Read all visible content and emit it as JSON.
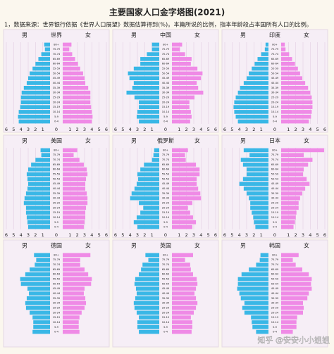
{
  "title": "主要国家人口金字塔图(2021)",
  "note": "1，数据来源：世界银行依据《世界人口展望》数据估算得到(%)。本篇所说的比例，指本年龄段占本国所有人口的比例。",
  "watermark": "知乎 @安安小小姐姐",
  "chart_data": [
    {
      "type": "pyramid",
      "title": "世界",
      "categories": [
        "0-4",
        "5-9",
        "10-14",
        "15-19",
        "20-24",
        "25-29",
        "30-34",
        "35-39",
        "40-44",
        "45-49",
        "50-54",
        "55-59",
        "60-64",
        "65-69",
        "70-74",
        "75-79",
        "80+"
      ],
      "series": [
        {
          "name": "男",
          "color": "#39b7e6",
          "values": [
            4.3,
            4.4,
            4.3,
            4.1,
            4.0,
            4.0,
            3.9,
            3.6,
            3.2,
            3.0,
            2.8,
            2.4,
            2.0,
            1.6,
            1.2,
            0.7,
            0.8
          ]
        },
        {
          "name": "女",
          "color": "#ef8ae6",
          "values": [
            4.0,
            4.1,
            4.0,
            3.9,
            3.8,
            3.8,
            3.8,
            3.5,
            3.1,
            3.0,
            2.8,
            2.4,
            2.1,
            1.7,
            1.3,
            0.9,
            1.2
          ]
        }
      ],
      "xlim": [
        -6,
        6
      ],
      "xticks": [
        {
          "value": -6,
          "label": "6"
        },
        {
          "value": -5,
          "label": "5"
        },
        {
          "value": -4,
          "label": "4"
        },
        {
          "value": -3,
          "label": "3"
        },
        {
          "value": -2,
          "label": "2"
        },
        {
          "value": -1,
          "label": "1"
        },
        0,
        1,
        2,
        3,
        4,
        5,
        6
      ],
      "grid": true
    },
    {
      "type": "pyramid",
      "title": "中国",
      "categories": [
        "0-4",
        "5-9",
        "10-14",
        "15-19",
        "20-24",
        "25-29",
        "30-34",
        "35-39",
        "40-44",
        "45-49",
        "50-54",
        "55-59",
        "60-64",
        "65-69",
        "70-74",
        "75-79",
        "80+"
      ],
      "series": [
        {
          "name": "男",
          "color": "#39b7e6",
          "values": [
            2.8,
            3.1,
            3.0,
            2.8,
            2.8,
            3.4,
            4.5,
            3.7,
            3.5,
            4.1,
            4.3,
            3.5,
            2.6,
            2.6,
            1.7,
            1.0,
            1.0
          ]
        },
        {
          "name": "女",
          "color": "#ef8ae6",
          "values": [
            2.5,
            2.7,
            2.6,
            2.4,
            2.4,
            3.1,
            4.3,
            3.6,
            3.4,
            4.0,
            4.2,
            3.5,
            2.6,
            2.7,
            1.8,
            1.1,
            1.4
          ]
        }
      ],
      "xlim": [
        -6,
        6
      ],
      "xticks": [
        {
          "value": -6,
          "label": "6"
        },
        {
          "value": -5,
          "label": "5"
        },
        {
          "value": -4,
          "label": "4"
        },
        {
          "value": -3,
          "label": "3"
        },
        {
          "value": -2,
          "label": "2"
        },
        {
          "value": -1,
          "label": "1"
        },
        0,
        1,
        2,
        3,
        4,
        5,
        6
      ],
      "grid": true
    },
    {
      "type": "pyramid",
      "title": "印度",
      "categories": [
        "0-4",
        "5-9",
        "10-14",
        "15-19",
        "20-24",
        "25-29",
        "30-34",
        "35-39",
        "40-44",
        "45-49",
        "50-54",
        "55-59",
        "60-64",
        "65-69",
        "70-74",
        "75-79",
        "80+"
      ],
      "series": [
        {
          "name": "男",
          "color": "#39b7e6",
          "values": [
            4.2,
            4.5,
            4.7,
            4.8,
            4.7,
            4.5,
            4.2,
            3.9,
            3.4,
            3.0,
            2.7,
            2.3,
            1.9,
            1.5,
            1.0,
            0.5,
            0.4
          ]
        },
        {
          "name": "女",
          "color": "#ef8ae6",
          "values": [
            3.8,
            4.1,
            4.2,
            4.3,
            4.3,
            4.2,
            4.0,
            3.7,
            3.3,
            2.9,
            2.6,
            2.3,
            1.9,
            1.5,
            1.1,
            0.6,
            0.5
          ]
        }
      ],
      "xlim": [
        -6,
        6
      ],
      "xticks": [
        {
          "value": -6,
          "label": "6"
        },
        {
          "value": -5,
          "label": "5"
        },
        {
          "value": -4,
          "label": "4"
        },
        {
          "value": -3,
          "label": "3"
        },
        {
          "value": -2,
          "label": "2"
        },
        {
          "value": -1,
          "label": "1"
        },
        0,
        1,
        2,
        3,
        4,
        5,
        6
      ],
      "grid": true
    },
    {
      "type": "pyramid",
      "title": "美国",
      "categories": [
        "0-4",
        "5-9",
        "10-14",
        "15-19",
        "20-24",
        "25-29",
        "30-34",
        "35-39",
        "40-44",
        "45-49",
        "50-54",
        "55-59",
        "60-64",
        "65-69",
        "70-74",
        "75-79",
        "80+"
      ],
      "series": [
        {
          "name": "男",
          "color": "#39b7e6",
          "values": [
            3.0,
            3.1,
            3.2,
            3.3,
            3.3,
            3.6,
            3.5,
            3.3,
            3.1,
            3.0,
            3.1,
            3.2,
            3.0,
            2.6,
            2.0,
            1.2,
            1.3
          ]
        },
        {
          "name": "女",
          "color": "#ef8ae6",
          "values": [
            2.9,
            3.0,
            3.1,
            3.1,
            3.2,
            3.4,
            3.4,
            3.3,
            3.1,
            3.1,
            3.2,
            3.4,
            3.3,
            2.9,
            2.3,
            1.5,
            2.0
          ]
        }
      ],
      "xlim": [
        -6,
        6
      ],
      "xticks": [
        {
          "value": -6,
          "label": "6"
        },
        {
          "value": -5,
          "label": "5"
        },
        {
          "value": -4,
          "label": "4"
        },
        {
          "value": -3,
          "label": "3"
        },
        {
          "value": -2,
          "label": "2"
        },
        {
          "value": -1,
          "label": "1"
        },
        0,
        1,
        2,
        3,
        4,
        5,
        6
      ],
      "grid": true
    },
    {
      "type": "pyramid",
      "title": "俄罗斯",
      "categories": [
        "0-4",
        "5-9",
        "10-14",
        "15-19",
        "20-24",
        "25-29",
        "30-34",
        "35-39",
        "40-44",
        "45-49",
        "50-54",
        "55-59",
        "60-64",
        "65-69",
        "70-74",
        "75-79",
        "80+"
      ],
      "series": [
        {
          "name": "男",
          "color": "#39b7e6",
          "values": [
            3.0,
            3.5,
            3.1,
            2.6,
            2.2,
            2.8,
            4.0,
            3.8,
            3.4,
            3.1,
            2.9,
            3.0,
            2.6,
            2.1,
            1.0,
            0.8,
            0.7
          ]
        },
        {
          "name": "女",
          "color": "#ef8ae6",
          "values": [
            2.8,
            3.3,
            2.9,
            2.5,
            2.2,
            2.8,
            4.0,
            3.9,
            3.6,
            3.4,
            3.4,
            3.8,
            3.8,
            3.3,
            1.9,
            1.8,
            2.2
          ]
        }
      ],
      "xlim": [
        -6,
        6
      ],
      "xticks": [
        {
          "value": -6,
          "label": "6"
        },
        {
          "value": -5,
          "label": "5"
        },
        {
          "value": -4,
          "label": "4"
        },
        {
          "value": -3,
          "label": "3"
        },
        {
          "value": -2,
          "label": "2"
        },
        {
          "value": -1,
          "label": "1"
        },
        0,
        1,
        2,
        3,
        4,
        5,
        6
      ],
      "grid": true
    },
    {
      "type": "pyramid",
      "title": "日本",
      "categories": [
        "0-4",
        "5-9",
        "10-14",
        "15-19",
        "20-24",
        "25-29",
        "30-34",
        "35-39",
        "40-44",
        "45-49",
        "50-54",
        "55-59",
        "60-64",
        "65-69",
        "70-74",
        "75-79",
        "80+"
      ],
      "series": [
        {
          "name": "男",
          "color": "#39b7e6",
          "values": [
            1.8,
            2.0,
            2.1,
            2.3,
            2.5,
            2.5,
            2.7,
            3.0,
            3.4,
            4.0,
            3.5,
            3.0,
            3.0,
            3.5,
            3.8,
            2.6,
            3.4
          ]
        },
        {
          "name": "女",
          "color": "#ef8ae6",
          "values": [
            1.7,
            1.9,
            2.0,
            2.1,
            2.4,
            2.4,
            2.6,
            2.9,
            3.3,
            3.9,
            3.5,
            3.0,
            3.1,
            3.7,
            4.3,
            3.1,
            5.9
          ]
        }
      ],
      "xlim": [
        -6,
        6
      ],
      "xticks": [
        {
          "value": -6,
          "label": "6"
        },
        {
          "value": -5,
          "label": "5"
        },
        {
          "value": -4,
          "label": "4"
        },
        {
          "value": -3,
          "label": "3"
        },
        {
          "value": -2,
          "label": "2"
        },
        {
          "value": -1,
          "label": "1"
        },
        0,
        1,
        2,
        3,
        4,
        5,
        6
      ],
      "grid": true
    },
    {
      "type": "pyramid",
      "title": "德国",
      "categories": [
        "0-4",
        "5-9",
        "10-14",
        "15-19",
        "20-24",
        "25-29",
        "30-34",
        "35-39",
        "40-44",
        "45-49",
        "50-54",
        "55-59",
        "60-64",
        "65-69",
        "70-74",
        "75-79",
        "80+"
      ],
      "series": [
        {
          "name": "男",
          "color": "#39b7e6",
          "values": [
            2.4,
            2.3,
            2.3,
            2.4,
            2.8,
            3.3,
            3.4,
            3.2,
            2.9,
            3.1,
            4.0,
            4.1,
            3.4,
            2.8,
            2.1,
            1.9,
            2.2
          ]
        },
        {
          "name": "女",
          "color": "#ef8ae6",
          "values": [
            2.3,
            2.2,
            2.2,
            2.3,
            2.6,
            3.0,
            3.2,
            3.1,
            2.9,
            3.0,
            3.9,
            4.0,
            3.5,
            3.0,
            2.4,
            2.4,
            3.8
          ]
        }
      ],
      "xlim": [
        -6,
        6
      ],
      "grid": true
    },
    {
      "type": "pyramid",
      "title": "英国",
      "categories": [
        "0-4",
        "5-9",
        "10-14",
        "15-19",
        "20-24",
        "25-29",
        "30-34",
        "35-39",
        "40-44",
        "45-49",
        "50-54",
        "55-59",
        "60-64",
        "65-69",
        "70-74",
        "75-79",
        "80+"
      ],
      "series": [
        {
          "name": "男",
          "color": "#39b7e6",
          "values": [
            2.8,
            3.0,
            3.0,
            2.8,
            3.1,
            3.4,
            3.5,
            3.3,
            3.1,
            3.2,
            3.4,
            3.3,
            2.8,
            2.5,
            2.3,
            1.5,
            1.9
          ]
        },
        {
          "name": "女",
          "color": "#ef8ae6",
          "values": [
            2.7,
            2.8,
            2.8,
            2.6,
            3.0,
            3.3,
            3.5,
            3.3,
            3.1,
            3.3,
            3.5,
            3.4,
            2.9,
            2.6,
            2.5,
            1.8,
            2.9
          ]
        }
      ],
      "xlim": [
        -6,
        6
      ],
      "grid": true
    },
    {
      "type": "pyramid",
      "title": "韩国",
      "categories": [
        "0-4",
        "5-9",
        "10-14",
        "15-19",
        "20-24",
        "25-29",
        "30-34",
        "35-39",
        "40-44",
        "45-49",
        "50-54",
        "55-59",
        "60-64",
        "65-69",
        "70-74",
        "75-79",
        "80+"
      ],
      "series": [
        {
          "name": "男",
          "color": "#39b7e6",
          "values": [
            1.7,
            2.2,
            2.3,
            2.4,
            3.3,
            3.6,
            3.3,
            3.8,
            4.0,
            4.3,
            4.2,
            4.2,
            3.7,
            2.7,
            1.7,
            1.2,
            1.1
          ]
        },
        {
          "name": "女",
          "color": "#ef8ae6",
          "values": [
            1.6,
            2.1,
            2.1,
            2.2,
            3.0,
            3.1,
            3.0,
            3.6,
            3.8,
            4.2,
            4.1,
            4.2,
            3.8,
            2.9,
            2.0,
            1.6,
            2.4
          ]
        }
      ],
      "xlim": [
        -6,
        6
      ],
      "grid": true
    }
  ]
}
